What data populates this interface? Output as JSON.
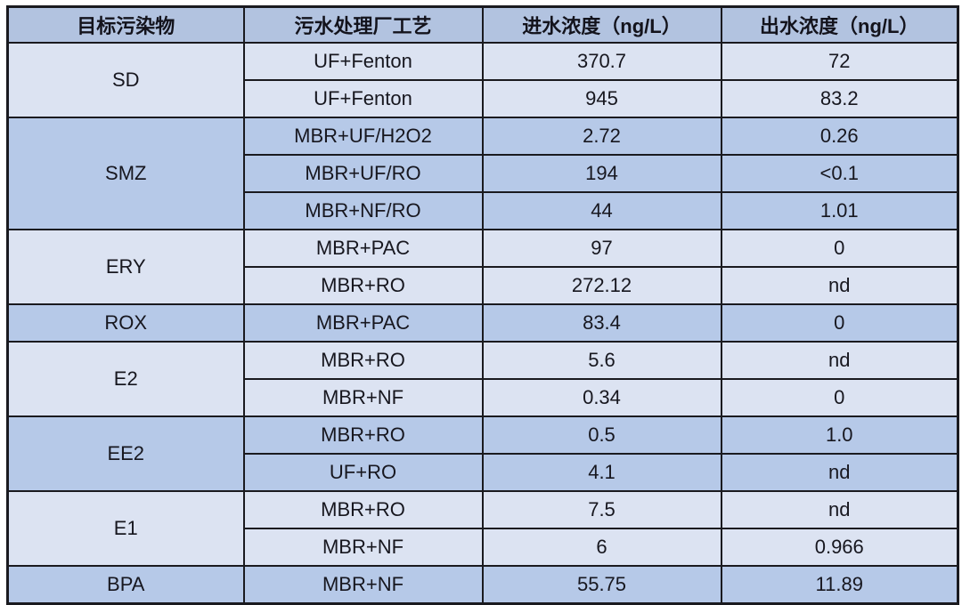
{
  "table": {
    "headers": [
      "目标污染物",
      "污水处理厂工艺",
      "进水浓度（ng/L）",
      "出水浓度（ng/L）"
    ],
    "groups": [
      {
        "pollutant": "SD",
        "shade": "light",
        "rows": [
          [
            "UF+Fenton",
            "370.7",
            "72"
          ],
          [
            "UF+Fenton",
            "945",
            "83.2"
          ]
        ]
      },
      {
        "pollutant": "SMZ",
        "shade": "dark",
        "rows": [
          [
            "MBR+UF/H2O2",
            "2.72",
            "0.26"
          ],
          [
            "MBR+UF/RO",
            "194",
            "<0.1"
          ],
          [
            "MBR+NF/RO",
            "44",
            "1.01"
          ]
        ]
      },
      {
        "pollutant": "ERY",
        "shade": "light",
        "rows": [
          [
            "MBR+PAC",
            "97",
            "0"
          ],
          [
            "MBR+RO",
            "272.12",
            "nd"
          ]
        ]
      },
      {
        "pollutant": "ROX",
        "shade": "dark",
        "rows": [
          [
            "MBR+PAC",
            "83.4",
            "0"
          ]
        ]
      },
      {
        "pollutant": "E2",
        "shade": "light",
        "rows": [
          [
            "MBR+RO",
            "5.6",
            "nd"
          ],
          [
            "MBR+NF",
            "0.34",
            "0"
          ]
        ]
      },
      {
        "pollutant": "EE2",
        "shade": "dark",
        "rows": [
          [
            "MBR+RO",
            "0.5",
            "1.0"
          ],
          [
            "UF+RO",
            "4.1",
            "nd"
          ]
        ]
      },
      {
        "pollutant": "E1",
        "shade": "light",
        "rows": [
          [
            "MBR+RO",
            "7.5",
            "nd"
          ],
          [
            "MBR+NF",
            "6",
            "0.966"
          ]
        ]
      },
      {
        "pollutant": "BPA",
        "shade": "dark",
        "rows": [
          [
            "MBR+NF",
            "55.75",
            "11.89"
          ]
        ]
      }
    ],
    "colors": {
      "header_bg": "#b2c3e0",
      "group_light_bg": "#dce3f2",
      "group_dark_bg": "#b6c9e8",
      "border": "#1a1a1f",
      "text": "#17171f",
      "page_bg": "#ffffff"
    }
  },
  "chart_data": {
    "type": "table",
    "title": "",
    "columns": [
      "目标污染物",
      "污水处理厂工艺",
      "进水浓度（ng/L）",
      "出水浓度（ng/L）"
    ],
    "rows": [
      [
        "SD",
        "UF+Fenton",
        "370.7",
        "72"
      ],
      [
        "SD",
        "UF+Fenton",
        "945",
        "83.2"
      ],
      [
        "SMZ",
        "MBR+UF/H2O2",
        "2.72",
        "0.26"
      ],
      [
        "SMZ",
        "MBR+UF/RO",
        "194",
        "<0.1"
      ],
      [
        "SMZ",
        "MBR+NF/RO",
        "44",
        "1.01"
      ],
      [
        "ERY",
        "MBR+PAC",
        "97",
        "0"
      ],
      [
        "ERY",
        "MBR+RO",
        "272.12",
        "nd"
      ],
      [
        "ROX",
        "MBR+PAC",
        "83.4",
        "0"
      ],
      [
        "E2",
        "MBR+RO",
        "5.6",
        "nd"
      ],
      [
        "E2",
        "MBR+NF",
        "0.34",
        "0"
      ],
      [
        "EE2",
        "MBR+RO",
        "0.5",
        "1.0"
      ],
      [
        "EE2",
        "UF+RO",
        "4.1",
        "nd"
      ],
      [
        "E1",
        "MBR+RO",
        "7.5",
        "nd"
      ],
      [
        "E1",
        "MBR+NF",
        "6",
        "0.966"
      ],
      [
        "BPA",
        "MBR+NF",
        "55.75",
        "11.89"
      ]
    ]
  }
}
